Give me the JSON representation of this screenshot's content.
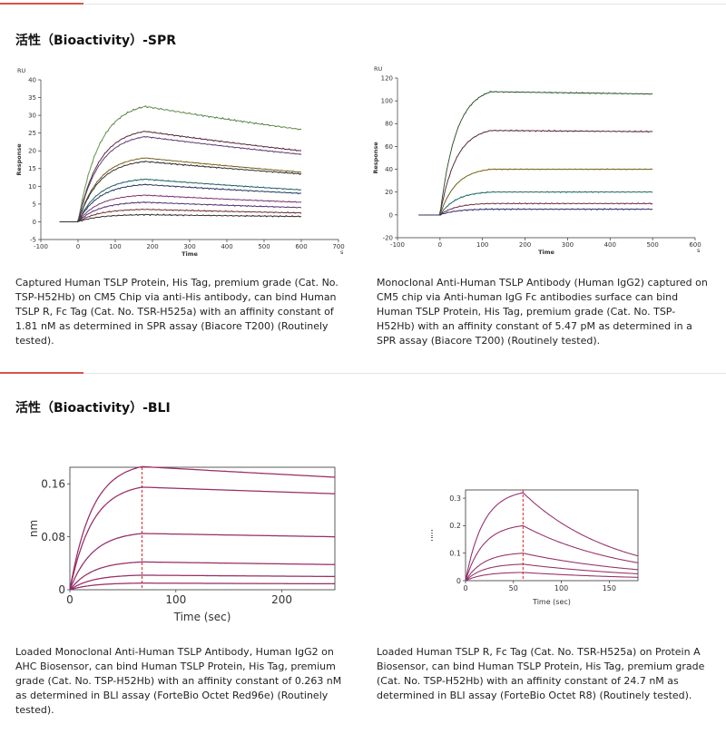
{
  "sections": [
    {
      "title": "活性（Bioactivity）-SPR",
      "captions": [
        "Captured Human TSLP Protein, His Tag, premium grade (Cat. No. TSP-H52Hb) on CM5 Chip via anti-His antibody, can bind Human TSLP R, Fc Tag (Cat. No. TSR-H525a) with an affinity constant of 1.81 nM as determined in SPR assay (Biacore T200) (Routinely tested).",
        "Monoclonal Anti-Human TSLP Antibody (Human IgG2) captured on CM5 chip via Anti-human IgG Fc antibodies surface can bind Human TSLP Protein, His Tag, premium grade (Cat. No. TSP-H52Hb) with an affinity constant of 5.47 pM as determined in a SPR assay (Biacore T200) (Routinely tested)."
      ]
    },
    {
      "title": "活性（Bioactivity）-BLI",
      "captions": [
        "Loaded Monoclonal Anti-Human TSLP Antibody, Human IgG2 on AHC Biosensor, can bind Human TSLP Protein, His Tag, premium grade (Cat. No. TSP-H52Hb) with an affinity constant of 0.263 nM as determined in BLI assay (ForteBio Octet Red96e) (Routinely tested).",
        "Loaded Human TSLP R, Fc Tag (Cat. No. TSR-H525a) on Protein A Biosensor, can bind Human TSLP Protein, His Tag, premium grade (Cat. No. TSP-H52Hb) with an affinity constant of 24.7 nM as determined in BLI assay (ForteBio Octet R8) (Routinely tested)."
      ]
    }
  ],
  "chart_data": [
    {
      "type": "line",
      "unit_label": "RU",
      "ylabel": "Response",
      "xlabel": "Time",
      "x_unit": "s",
      "xlim": [
        -100,
        700
      ],
      "ylim": [
        -5,
        40
      ],
      "xticks": [
        -100,
        0,
        100,
        200,
        300,
        400,
        500,
        600,
        700
      ],
      "yticks": [
        -5,
        0,
        5,
        10,
        15,
        20,
        25,
        30,
        35,
        40
      ],
      "association_end": 180,
      "curve_end": 600,
      "series": [
        {
          "peak": 32.5,
          "end": 26.0,
          "color": "#2b2b2b",
          "fit": "#7ed957"
        },
        {
          "peak": 25.5,
          "end": 20.0,
          "color": "#8b1a4a",
          "fit": "#333333"
        },
        {
          "peak": 24.0,
          "end": 19.0,
          "color": "#9a52c9",
          "fit": "#333333"
        },
        {
          "peak": 18.0,
          "end": 14.0,
          "color": "#d4a017",
          "fit": "#333333"
        },
        {
          "peak": 17.0,
          "end": 13.5,
          "color": "#2f2f2f",
          "fit": "#333333"
        },
        {
          "peak": 12.0,
          "end": 9.0,
          "color": "#17a2a2",
          "fit": "#333333"
        },
        {
          "peak": 10.5,
          "end": 8.0,
          "color": "#1f3f9e",
          "fit": "#333333"
        },
        {
          "peak": 7.5,
          "end": 5.5,
          "color": "#e040c8",
          "fit": "#333333"
        },
        {
          "peak": 5.5,
          "end": 4.0,
          "color": "#7a3cc4",
          "fit": "#333333"
        },
        {
          "peak": 3.5,
          "end": 2.5,
          "color": "#c03030",
          "fit": "#333333"
        },
        {
          "peak": 2.0,
          "end": 1.5,
          "color": "#333333",
          "fit": "#333333"
        }
      ]
    },
    {
      "type": "line",
      "unit_label": "RU",
      "ylabel": "Response",
      "xlabel": "Time",
      "x_unit": "s",
      "xlim": [
        -100,
        600
      ],
      "ylim": [
        -20,
        120
      ],
      "xticks": [
        -100,
        0,
        100,
        200,
        300,
        400,
        500,
        600
      ],
      "yticks": [
        -20,
        0,
        20,
        40,
        60,
        80,
        100,
        120
      ],
      "association_end": 120,
      "curve_end": 500,
      "series": [
        {
          "peak": 108,
          "end": 106,
          "color": "#2a8a2a",
          "fit": "#333333"
        },
        {
          "peak": 74,
          "end": 73,
          "color": "#8b1a4a",
          "fit": "#333333"
        },
        {
          "peak": 40,
          "end": 40,
          "color": "#c8a000",
          "fit": "#333333"
        },
        {
          "peak": 20,
          "end": 20,
          "color": "#17a2a2",
          "fit": "#333333"
        },
        {
          "peak": 10,
          "end": 10,
          "color": "#c03070",
          "fit": "#333333"
        },
        {
          "peak": 5,
          "end": 5,
          "color": "#2b2bb0",
          "fit": "#333333"
        }
      ]
    },
    {
      "type": "line",
      "ylabel": "nm",
      "xlabel": "Time (sec)",
      "xlim": [
        0,
        250
      ],
      "ylim": [
        0,
        0.185
      ],
      "xticks": [
        0,
        100,
        200
      ],
      "yticks": [
        0,
        0.08,
        0.16
      ],
      "association_end": 68,
      "curve_end": 250,
      "series": [
        {
          "peak": 0.186,
          "end": 0.17,
          "color": "#1f3fd4",
          "fit": "#e02020"
        },
        {
          "peak": 0.155,
          "end": 0.145,
          "color": "#1f3fd4",
          "fit": "#e02020"
        },
        {
          "peak": 0.085,
          "end": 0.08,
          "color": "#1f3fd4",
          "fit": "#e02020"
        },
        {
          "peak": 0.042,
          "end": 0.038,
          "color": "#1f3fd4",
          "fit": "#e02020"
        },
        {
          "peak": 0.022,
          "end": 0.02,
          "color": "#1f3fd4",
          "fit": "#e02020"
        },
        {
          "peak": 0.01,
          "end": 0.009,
          "color": "#1f3fd4",
          "fit": "#e02020"
        }
      ]
    },
    {
      "type": "line",
      "ylabel": "nm",
      "xlabel": "Time (sec)",
      "xlim": [
        0,
        180
      ],
      "ylim": [
        0,
        0.33
      ],
      "xticks": [
        0,
        50,
        100,
        150
      ],
      "yticks": [
        0,
        0.1,
        0.2,
        0.3
      ],
      "association_end": 60,
      "curve_end": 180,
      "series": [
        {
          "peak": 0.32,
          "end": 0.09,
          "color": "#1f3fd4",
          "fit": "#e02020"
        },
        {
          "peak": 0.2,
          "end": 0.065,
          "color": "#1f3fd4",
          "fit": "#e02020"
        },
        {
          "peak": 0.1,
          "end": 0.04,
          "color": "#1f3fd4",
          "fit": "#e02020"
        },
        {
          "peak": 0.06,
          "end": 0.025,
          "color": "#1f3fd4",
          "fit": "#e02020"
        },
        {
          "peak": 0.03,
          "end": 0.012,
          "color": "#1f3fd4",
          "fit": "#e02020"
        }
      ]
    }
  ]
}
